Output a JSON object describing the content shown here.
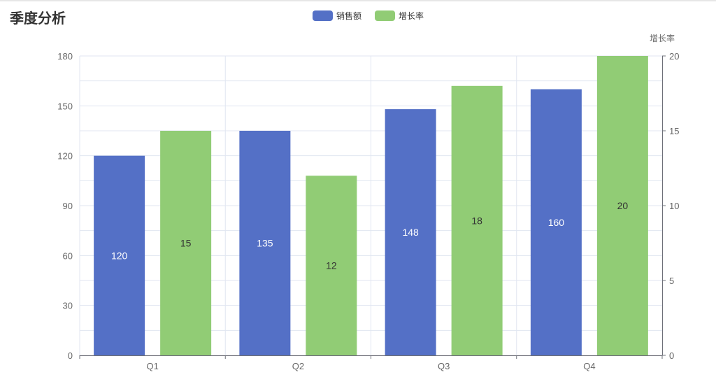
{
  "chart_data": {
    "type": "bar",
    "title": "季度分析",
    "categories": [
      "Q1",
      "Q2",
      "Q3",
      "Q4"
    ],
    "series": [
      {
        "name": "销售额",
        "values": [
          120,
          135,
          148,
          160
        ],
        "color": "#5470c6",
        "axis": "left",
        "label_color": "#ffffff"
      },
      {
        "name": "增长率",
        "values": [
          15,
          12,
          18,
          20
        ],
        "color": "#91cc75",
        "axis": "right",
        "label_color": "#333333"
      }
    ],
    "y_left": {
      "name": "",
      "min": 0,
      "max": 180,
      "ticks": [
        0,
        30,
        60,
        90,
        120,
        150,
        180
      ]
    },
    "y_right": {
      "name": "增长率",
      "min": 0,
      "max": 20,
      "ticks": [
        0,
        5,
        10,
        15,
        20
      ]
    },
    "legend_position": "top-center",
    "grid": true,
    "colors": {
      "axis": "#6e7079",
      "grid": "#e0e6f1",
      "tick_text": "#666666"
    }
  }
}
